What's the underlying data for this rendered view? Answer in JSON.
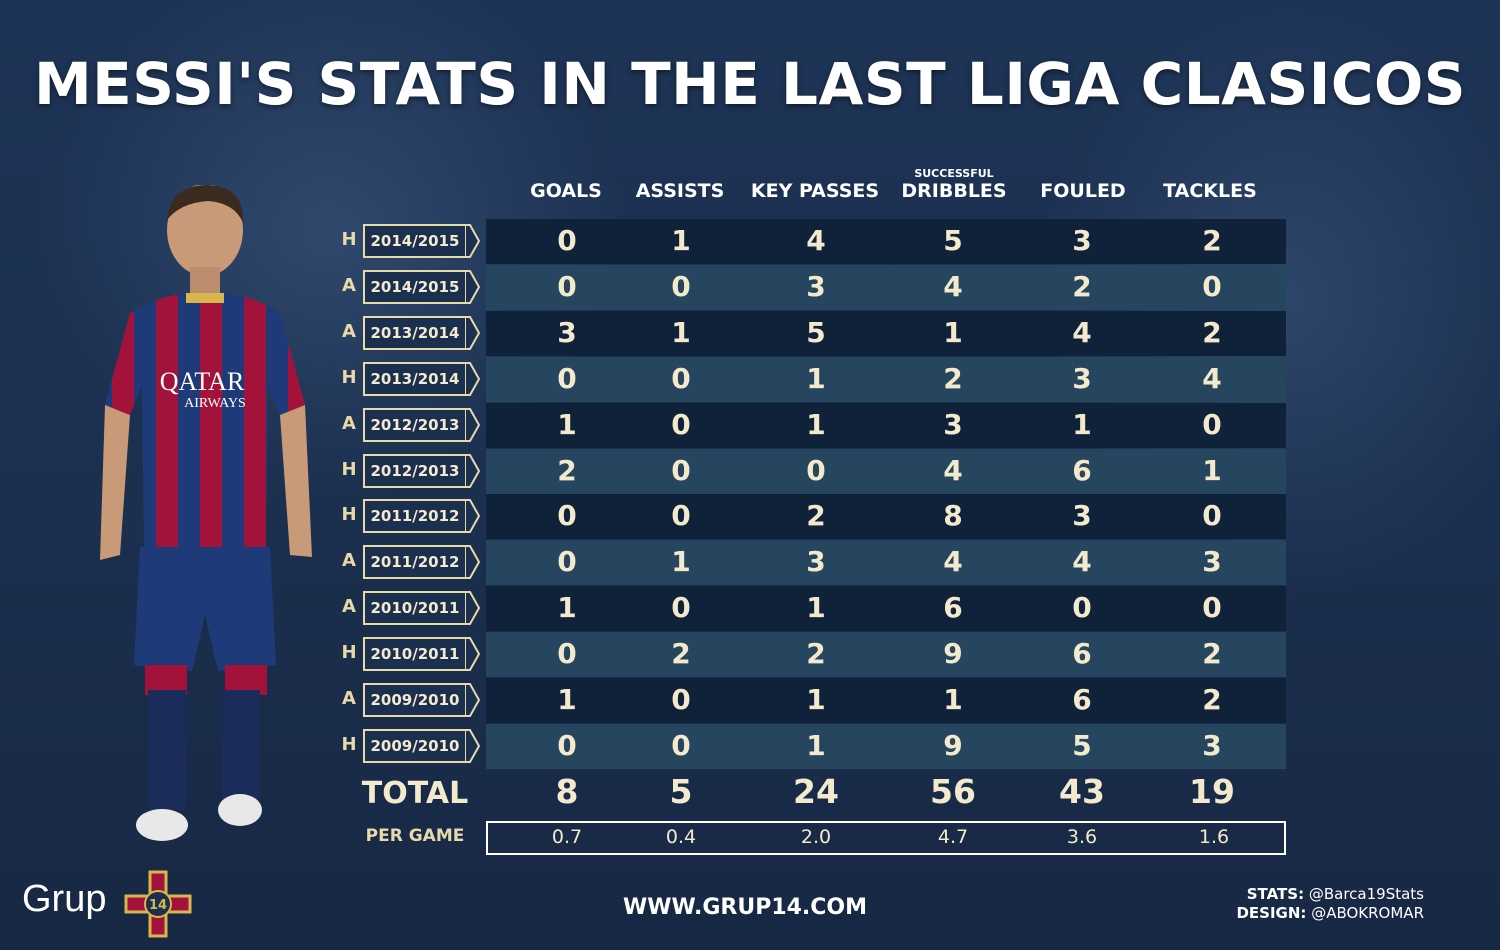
{
  "title": "MESSI'S STATS IN THE LAST LIGA CLASICOS",
  "columns": [
    {
      "label": "GOALS",
      "sup": ""
    },
    {
      "label": "ASSISTS",
      "sup": ""
    },
    {
      "label": "KEY PASSES",
      "sup": ""
    },
    {
      "label": "DRIBBLES",
      "sup": "SUCCESSFUL"
    },
    {
      "label": "FOULED",
      "sup": ""
    },
    {
      "label": "TACKLES",
      "sup": ""
    }
  ],
  "rows": [
    {
      "venue": "H",
      "season": "2014/2015",
      "values": [
        0,
        1,
        4,
        5,
        3,
        2
      ]
    },
    {
      "venue": "A",
      "season": "2014/2015",
      "values": [
        0,
        0,
        3,
        4,
        2,
        0
      ]
    },
    {
      "venue": "A",
      "season": "2013/2014",
      "values": [
        3,
        1,
        5,
        1,
        4,
        2
      ]
    },
    {
      "venue": "H",
      "season": "2013/2014",
      "values": [
        0,
        0,
        1,
        2,
        3,
        4
      ]
    },
    {
      "venue": "A",
      "season": "2012/2013",
      "values": [
        1,
        0,
        1,
        3,
        1,
        0
      ]
    },
    {
      "venue": "H",
      "season": "2012/2013",
      "values": [
        2,
        0,
        0,
        4,
        6,
        1
      ]
    },
    {
      "venue": "H",
      "season": "2011/2012",
      "values": [
        0,
        0,
        2,
        8,
        3,
        0
      ]
    },
    {
      "venue": "A",
      "season": "2011/2012",
      "values": [
        0,
        1,
        3,
        4,
        4,
        3
      ]
    },
    {
      "venue": "A",
      "season": "2010/2011",
      "values": [
        1,
        0,
        1,
        6,
        0,
        0
      ]
    },
    {
      "venue": "H",
      "season": "2010/2011",
      "values": [
        0,
        2,
        2,
        9,
        6,
        2
      ]
    },
    {
      "venue": "A",
      "season": "2009/2010",
      "values": [
        1,
        0,
        1,
        1,
        6,
        2
      ]
    },
    {
      "venue": "H",
      "season": "2009/2010",
      "values": [
        0,
        0,
        1,
        9,
        5,
        3
      ]
    }
  ],
  "totals": {
    "label": "TOTAL",
    "values": [
      "8",
      "5",
      "24",
      "56",
      "43",
      "19"
    ]
  },
  "per_game": {
    "label": "PER GAME",
    "values": [
      "0.7",
      "0.4",
      "2.0",
      "4.7",
      "3.6",
      "1.6"
    ]
  },
  "footer": {
    "website": "WWW.GRUP14.COM",
    "logo_text": "Grup",
    "logo_number": "14",
    "stats_label": "STATS:",
    "stats_value": "@Barca19Stats",
    "design_label": "DESIGN:",
    "design_value": "@ABOKROMAR"
  },
  "colors": {
    "background": "#1b2f4e",
    "row_dark": "#10213a",
    "row_light": "#26455f",
    "value_text": "#f3e9cc",
    "accent_gold": "#e8d9a8",
    "jersey_blue": "#1f3a78",
    "jersey_red": "#a3123a"
  },
  "chart_data": {
    "type": "table",
    "title": "MESSI'S STATS IN THE LAST LIGA CLASICOS",
    "columns": [
      "GOALS",
      "ASSISTS",
      "KEY PASSES",
      "SUCCESSFUL DRIBBLES",
      "FOULED",
      "TACKLES"
    ],
    "rows": [
      {
        "venue": "H",
        "season": "2014/2015",
        "values": [
          0,
          1,
          4,
          5,
          3,
          2
        ]
      },
      {
        "venue": "A",
        "season": "2014/2015",
        "values": [
          0,
          0,
          3,
          4,
          2,
          0
        ]
      },
      {
        "venue": "A",
        "season": "2013/2014",
        "values": [
          3,
          1,
          5,
          1,
          4,
          2
        ]
      },
      {
        "venue": "H",
        "season": "2013/2014",
        "values": [
          0,
          0,
          1,
          2,
          3,
          4
        ]
      },
      {
        "venue": "A",
        "season": "2012/2013",
        "values": [
          1,
          0,
          1,
          3,
          1,
          0
        ]
      },
      {
        "venue": "H",
        "season": "2012/2013",
        "values": [
          2,
          0,
          0,
          4,
          6,
          1
        ]
      },
      {
        "venue": "H",
        "season": "2011/2012",
        "values": [
          0,
          0,
          2,
          8,
          3,
          0
        ]
      },
      {
        "venue": "A",
        "season": "2011/2012",
        "values": [
          0,
          1,
          3,
          4,
          4,
          3
        ]
      },
      {
        "venue": "A",
        "season": "2010/2011",
        "values": [
          1,
          0,
          1,
          6,
          0,
          0
        ]
      },
      {
        "venue": "H",
        "season": "2010/2011",
        "values": [
          0,
          2,
          2,
          9,
          6,
          2
        ]
      },
      {
        "venue": "A",
        "season": "2009/2010",
        "values": [
          1,
          0,
          1,
          1,
          6,
          2
        ]
      },
      {
        "venue": "H",
        "season": "2009/2010",
        "values": [
          0,
          0,
          1,
          9,
          5,
          3
        ]
      }
    ],
    "totals": [
      8,
      5,
      24,
      56,
      43,
      19
    ],
    "per_game": [
      0.7,
      0.4,
      2.0,
      4.7,
      3.6,
      1.6
    ]
  }
}
